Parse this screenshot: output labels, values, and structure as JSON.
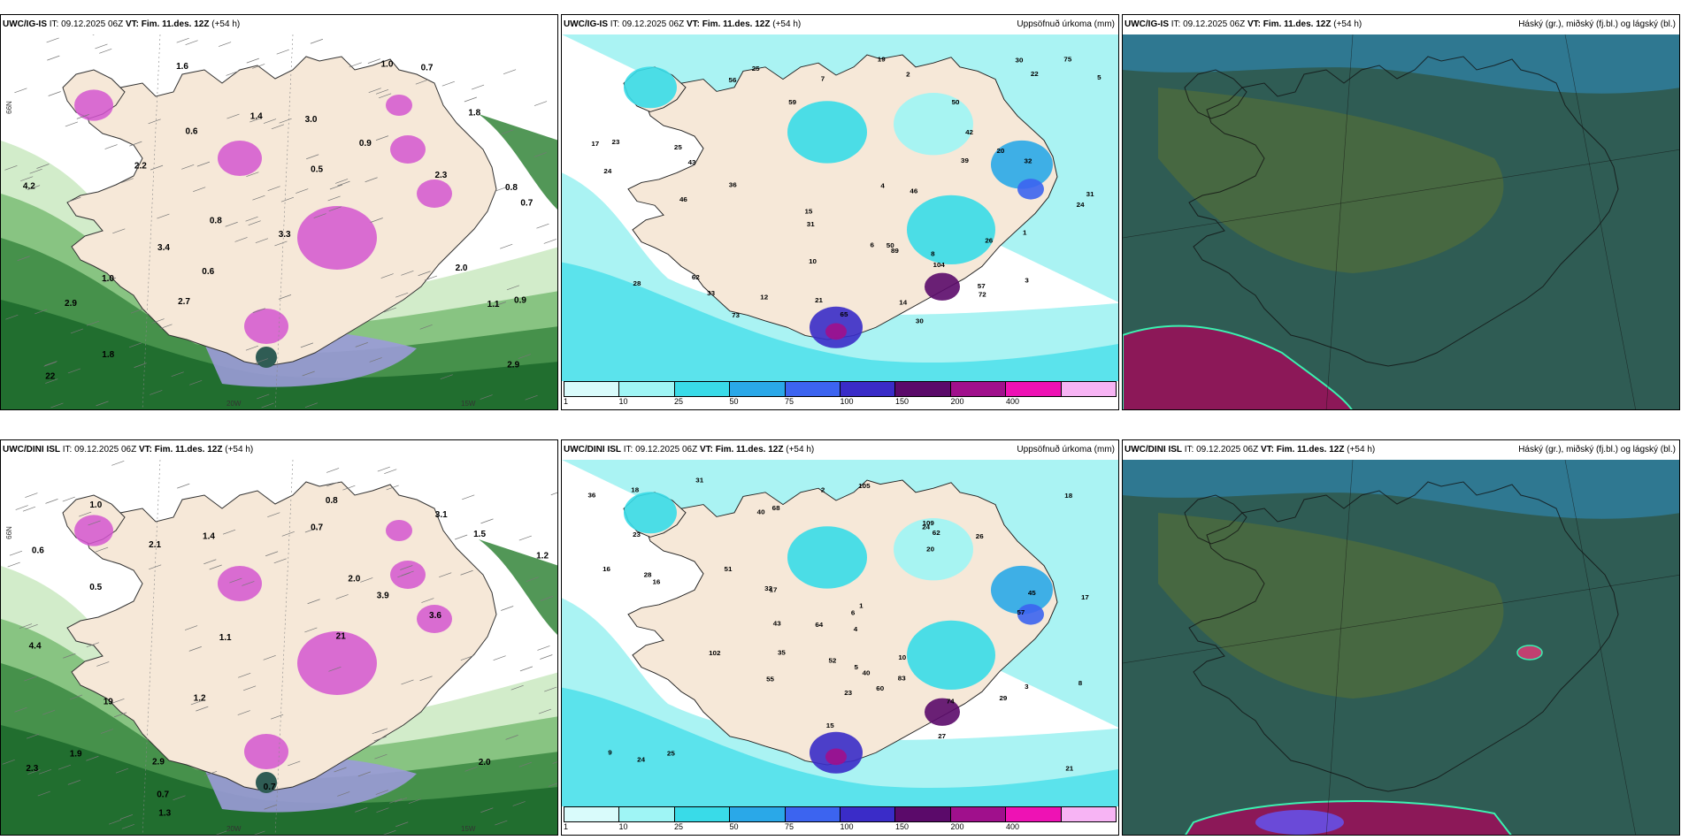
{
  "rows": [
    {
      "id": "igis",
      "panels": [
        {
          "kind": "wind",
          "model": "UWC/IG-IS",
          "it_label": "IT:",
          "it": "09.12.2025 06Z",
          "vt_label": "VT:",
          "vt": "Fim. 11.des. 12Z",
          "lead": "(+54 h)",
          "title": "",
          "lat_label": "66N",
          "lon_label": "20W",
          "lon_label2": "15W"
        },
        {
          "kind": "precip",
          "model": "UWC/IG-IS",
          "it_label": "IT:",
          "it": "09.12.2025 06Z",
          "vt_label": "VT:",
          "vt": "Fim. 11.des. 12Z",
          "lead": "(+54 h)",
          "title": "Uppsöfnuð úrkoma (mm)"
        },
        {
          "kind": "cloud",
          "model": "UWC/IG-IS",
          "it_label": "IT:",
          "it": "09.12.2025 06Z",
          "vt_label": "VT:",
          "vt": "Fim. 11.des. 12Z",
          "lead": "(+54 h)",
          "title": "Háský (gr.), miðský (fj.bl.) og lágský (bl.)"
        }
      ]
    },
    {
      "id": "dini",
      "panels": [
        {
          "kind": "wind",
          "model": "UWC/DINI ISL",
          "it_label": "IT:",
          "it": "09.12.2025 06Z",
          "vt_label": "VT:",
          "vt": "Fim. 11.des. 12Z",
          "lead": "(+54 h)",
          "title": "",
          "lat_label": "66N",
          "lon_label": "20W",
          "lon_label2": "15W"
        },
        {
          "kind": "precip",
          "model": "UWC/DINI ISL",
          "it_label": "IT:",
          "it": "09.12.2025 06Z",
          "vt_label": "VT:",
          "vt": "Fim. 11.des. 12Z",
          "lead": "(+54 h)",
          "title": "Uppsöfnuð úrkoma (mm)"
        },
        {
          "kind": "cloud",
          "model": "UWC/DINI ISL",
          "it_label": "IT:",
          "it": "09.12.2025 06Z",
          "vt_label": "VT:",
          "vt": "Fim. 11.des. 12Z",
          "lead": "(+54 h)",
          "title": "Háský (gr.), miðský (fj.bl.) og lágský (bl.)"
        }
      ]
    }
  ],
  "precip_legend": {
    "ticks": [
      "1",
      "10",
      "25",
      "50",
      "75",
      "100",
      "150",
      "200",
      "400"
    ],
    "colors": [
      "#d9fbfb",
      "#9ff5f5",
      "#39dbe8",
      "#2aa8e8",
      "#3c64f0",
      "#3a2cc8",
      "#5b0a6a",
      "#a0108c",
      "#ee12b4",
      "#f7b4f4"
    ]
  },
  "colors": {
    "land": "#f6e8d8",
    "sea_precip": "#aaf3f3",
    "sea_wind_green_light": "#cdeac4",
    "sea_wind_green_dark": "#1d6a2c",
    "cloud_base": "#2f5c54",
    "cloud_mid": "#4d6b3c",
    "cloud_high_blue": "#2f7d9c",
    "cloud_low_magenta": "#8c1858"
  },
  "precip_labels": {
    "igis": [
      "30",
      "56",
      "62",
      "25",
      "20",
      "14",
      "24",
      "36",
      "31",
      "33",
      "28",
      "17",
      "15",
      "50",
      "39",
      "30",
      "24",
      "22",
      "26",
      "32",
      "57",
      "89",
      "73",
      "72",
      "46",
      "42",
      "46",
      "43",
      "65",
      "59",
      "104",
      "75",
      "50",
      "12",
      "25",
      "21",
      "19",
      "23",
      "31",
      "8",
      "7",
      "4",
      "5",
      "3",
      "2",
      "1",
      "6",
      "10"
    ],
    "dini": [
      "26",
      "64",
      "68",
      "31",
      "17",
      "40",
      "32",
      "35",
      "21",
      "52",
      "57",
      "45",
      "18",
      "16",
      "20",
      "36",
      "43",
      "27",
      "24",
      "28",
      "102",
      "105",
      "109",
      "74",
      "83",
      "51",
      "55",
      "62",
      "40",
      "60",
      "9",
      "25",
      "24",
      "23",
      "18",
      "17",
      "16",
      "15",
      "29",
      "23",
      "10",
      "4",
      "5",
      "3",
      "2",
      "1",
      "6",
      "8"
    ]
  },
  "wind_labels": {
    "igis": [
      "0.6",
      "0.8",
      "0.9",
      "0.7",
      "0.8",
      "0.9",
      "0.6",
      "1.0",
      "1.1",
      "1.8",
      "2.2",
      "2.0",
      "2.3",
      "2.7",
      "2.9",
      "3.3",
      "3.4",
      "4.2",
      "1.6",
      "1.4",
      "2.9",
      "3.0",
      "1.8",
      "1.0",
      "0.5",
      "0.7",
      "22"
    ],
    "dini": [
      "0.7",
      "0.8",
      "1.2",
      "1.4",
      "0.7",
      "0.6",
      "1.0",
      "1.1",
      "2.0",
      "2.1",
      "1.3",
      "1.9",
      "2.3",
      "2.9",
      "3.1",
      "3.6",
      "3.9",
      "4.4",
      "1.5",
      "2.0",
      "0.5",
      "21",
      "19",
      "0.7",
      "1.2"
    ]
  }
}
